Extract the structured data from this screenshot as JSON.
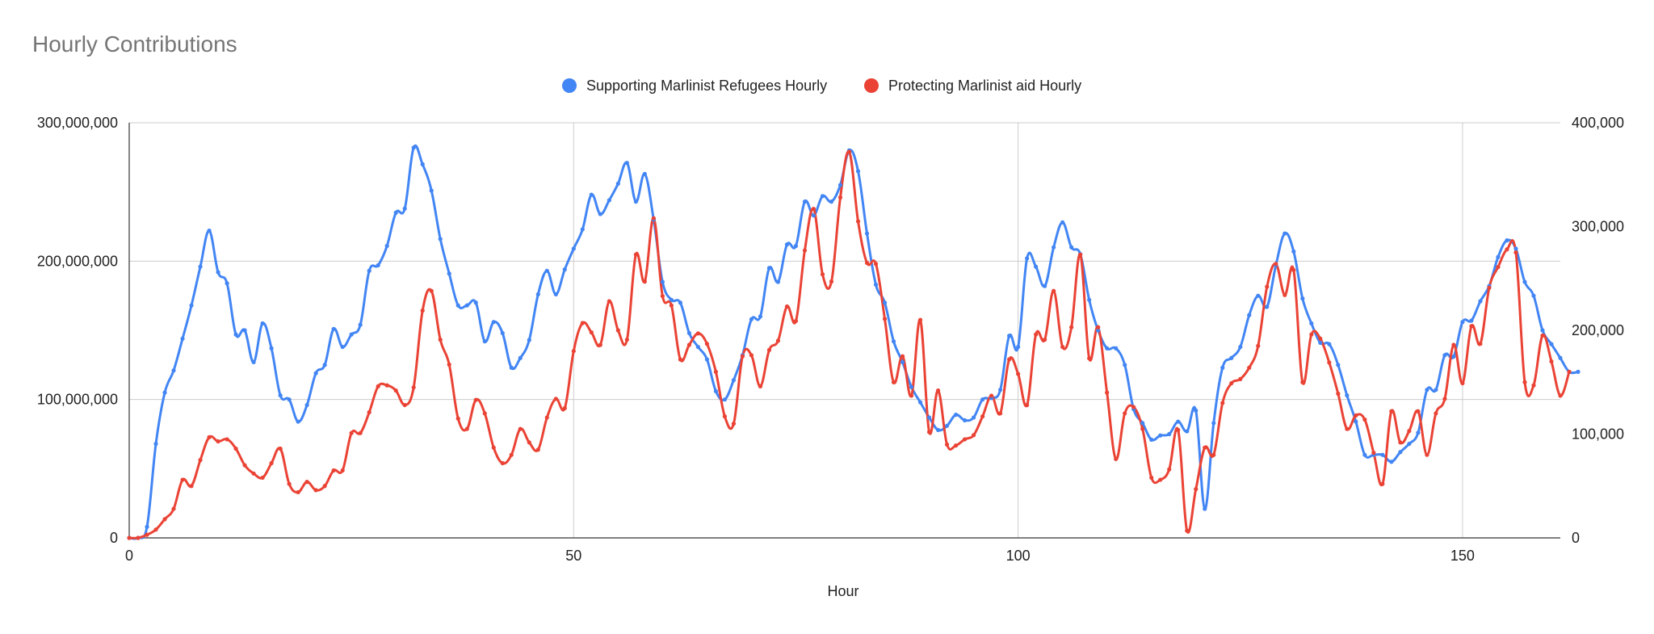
{
  "chart_data": {
    "type": "line",
    "title": "Hourly Contributions",
    "xlabel": "Hour",
    "ylabel_left": "",
    "ylabel_right": "",
    "xlim": [
      0,
      161
    ],
    "ylim_left": [
      0,
      300000000
    ],
    "ylim_right": [
      0,
      400000
    ],
    "x_ticks": [
      0,
      50,
      100,
      150
    ],
    "x_tick_labels": [
      "0",
      "50",
      "100",
      "150"
    ],
    "y_left_ticks": [
      0,
      100000000,
      200000000,
      300000000
    ],
    "y_left_tick_labels": [
      "0",
      "100,000,000",
      "200,000,000",
      "300,000,000"
    ],
    "y_right_ticks": [
      0,
      100000,
      200000,
      300000,
      400000
    ],
    "y_right_tick_labels": [
      "0",
      "100,000",
      "200,000",
      "300,000",
      "400,000"
    ],
    "grid": true,
    "legend_position": "top",
    "colors": {
      "series1": "#4285f4",
      "series2": "#ea4335",
      "grid": "#cccccc",
      "title": "#757575",
      "text": "#222222"
    },
    "series": [
      {
        "name": "Supporting Marlinist Refugees Hourly",
        "axis": "left",
        "color": "#4285f4",
        "values": [
          0,
          0,
          8000000,
          68000000,
          105000000,
          121000000,
          144000000,
          168000000,
          196000000,
          222000000,
          192000000,
          184000000,
          147000000,
          150000000,
          127000000,
          155000000,
          137000000,
          103000000,
          100000000,
          84000000,
          96000000,
          119000000,
          125000000,
          151000000,
          138000000,
          147000000,
          154000000,
          193000000,
          197000000,
          211000000,
          235000000,
          238000000,
          282000000,
          270000000,
          251000000,
          216000000,
          191000000,
          168000000,
          168000000,
          170000000,
          142000000,
          156000000,
          148000000,
          123000000,
          130000000,
          143000000,
          176000000,
          193000000,
          176000000,
          194000000,
          209000000,
          223000000,
          248000000,
          234000000,
          244000000,
          256000000,
          271000000,
          243000000,
          263000000,
          230000000,
          185000000,
          172000000,
          170000000,
          148000000,
          138000000,
          129000000,
          106000000,
          100000000,
          114000000,
          132000000,
          158000000,
          160000000,
          195000000,
          185000000,
          212000000,
          211000000,
          243000000,
          233000000,
          247000000,
          243000000,
          255000000,
          280000000,
          265000000,
          220000000,
          183000000,
          170000000,
          142000000,
          127000000,
          109000000,
          98000000,
          87000000,
          78000000,
          81000000,
          89000000,
          85000000,
          87000000,
          100000000,
          101000000,
          107000000,
          146000000,
          138000000,
          202000000,
          196000000,
          182000000,
          210000000,
          228000000,
          210000000,
          205000000,
          172000000,
          150000000,
          137000000,
          137000000,
          125000000,
          93000000,
          83000000,
          71000000,
          74000000,
          75000000,
          84000000,
          77000000,
          92000000,
          21000000,
          83000000,
          123000000,
          130000000,
          138000000,
          161000000,
          175000000,
          167000000,
          197000000,
          220000000,
          207000000,
          173000000,
          155000000,
          141000000,
          140000000,
          125000000,
          103000000,
          84000000,
          60000000,
          60000000,
          60000000,
          55000000,
          62000000,
          68000000,
          76000000,
          107000000,
          107000000,
          132000000,
          131000000,
          156000000,
          157000000,
          171000000,
          182000000,
          203000000,
          215000000,
          209000000,
          185000000,
          175000000,
          150000000,
          140000000,
          130000000,
          120000000,
          120000000
        ]
      },
      {
        "name": "Protecting Marlinist aid Hourly",
        "axis": "right",
        "color": "#ea4335",
        "values": [
          0,
          0,
          3000,
          8000,
          18000,
          28000,
          56000,
          50000,
          75000,
          97000,
          93000,
          95000,
          86000,
          70000,
          62000,
          58000,
          72000,
          86000,
          52000,
          44000,
          54000,
          46000,
          50000,
          65000,
          65000,
          101000,
          101000,
          121000,
          146000,
          147000,
          142000,
          128000,
          145000,
          219000,
          238000,
          191000,
          167000,
          115000,
          105000,
          133000,
          120000,
          87000,
          72000,
          80000,
          105000,
          92000,
          85000,
          116000,
          134000,
          125000,
          180000,
          207000,
          198000,
          186000,
          228000,
          200000,
          191000,
          273000,
          247000,
          308000,
          233000,
          224000,
          172000,
          186000,
          197000,
          187000,
          160000,
          117000,
          110000,
          175000,
          176000,
          146000,
          181000,
          190000,
          223000,
          209000,
          277000,
          317000,
          254000,
          247000,
          328000,
          372000,
          305000,
          265000,
          264000,
          211000,
          150000,
          175000,
          137000,
          210000,
          102000,
          142000,
          90000,
          89000,
          95000,
          99000,
          117000,
          137000,
          120000,
          172000,
          158000,
          128000,
          196000,
          191000,
          238000,
          184000,
          203000,
          273000,
          173000,
          203000,
          140000,
          76000,
          120000,
          126000,
          105000,
          58000,
          56000,
          66000,
          104000,
          7000,
          47000,
          87000,
          80000,
          130000,
          149000,
          153000,
          164000,
          185000,
          242000,
          264000,
          234000,
          258000,
          150000,
          196000,
          192000,
          169000,
          139000,
          105000,
          118000,
          114000,
          82000,
          52000,
          122000,
          92000,
          103000,
          122000,
          80000,
          120000,
          134000,
          186000,
          149000,
          204000,
          187000,
          241000,
          261000,
          278000,
          275000,
          150000,
          147000,
          195000,
          170000,
          137000,
          160000
        ]
      }
    ]
  }
}
